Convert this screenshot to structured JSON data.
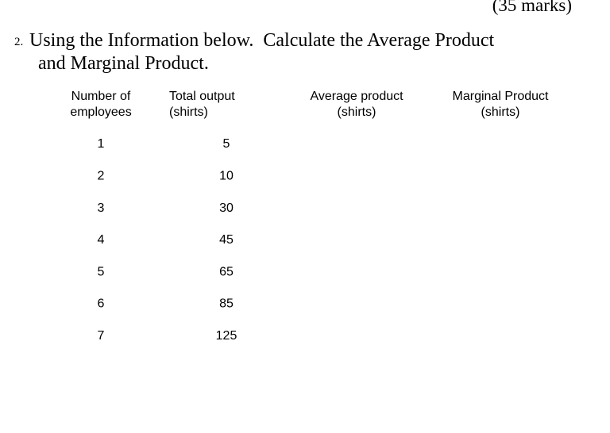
{
  "marks": "(35 marks)",
  "question": {
    "number": "2.",
    "lines": [
      "Using the Information below.  Calculate the Average Product",
      "and Marginal Product."
    ]
  },
  "table": {
    "headers": [
      [
        "Number of",
        "employees"
      ],
      [
        "Total output",
        "(shirts)"
      ],
      [
        "Average product",
        "(shirts)"
      ],
      [
        "Marginal Product",
        "(shirts)"
      ]
    ],
    "rows": [
      [
        1,
        5
      ],
      [
        2,
        10
      ],
      [
        3,
        30
      ],
      [
        4,
        45
      ],
      [
        5,
        65
      ],
      [
        6,
        85
      ],
      [
        7,
        125
      ]
    ]
  }
}
